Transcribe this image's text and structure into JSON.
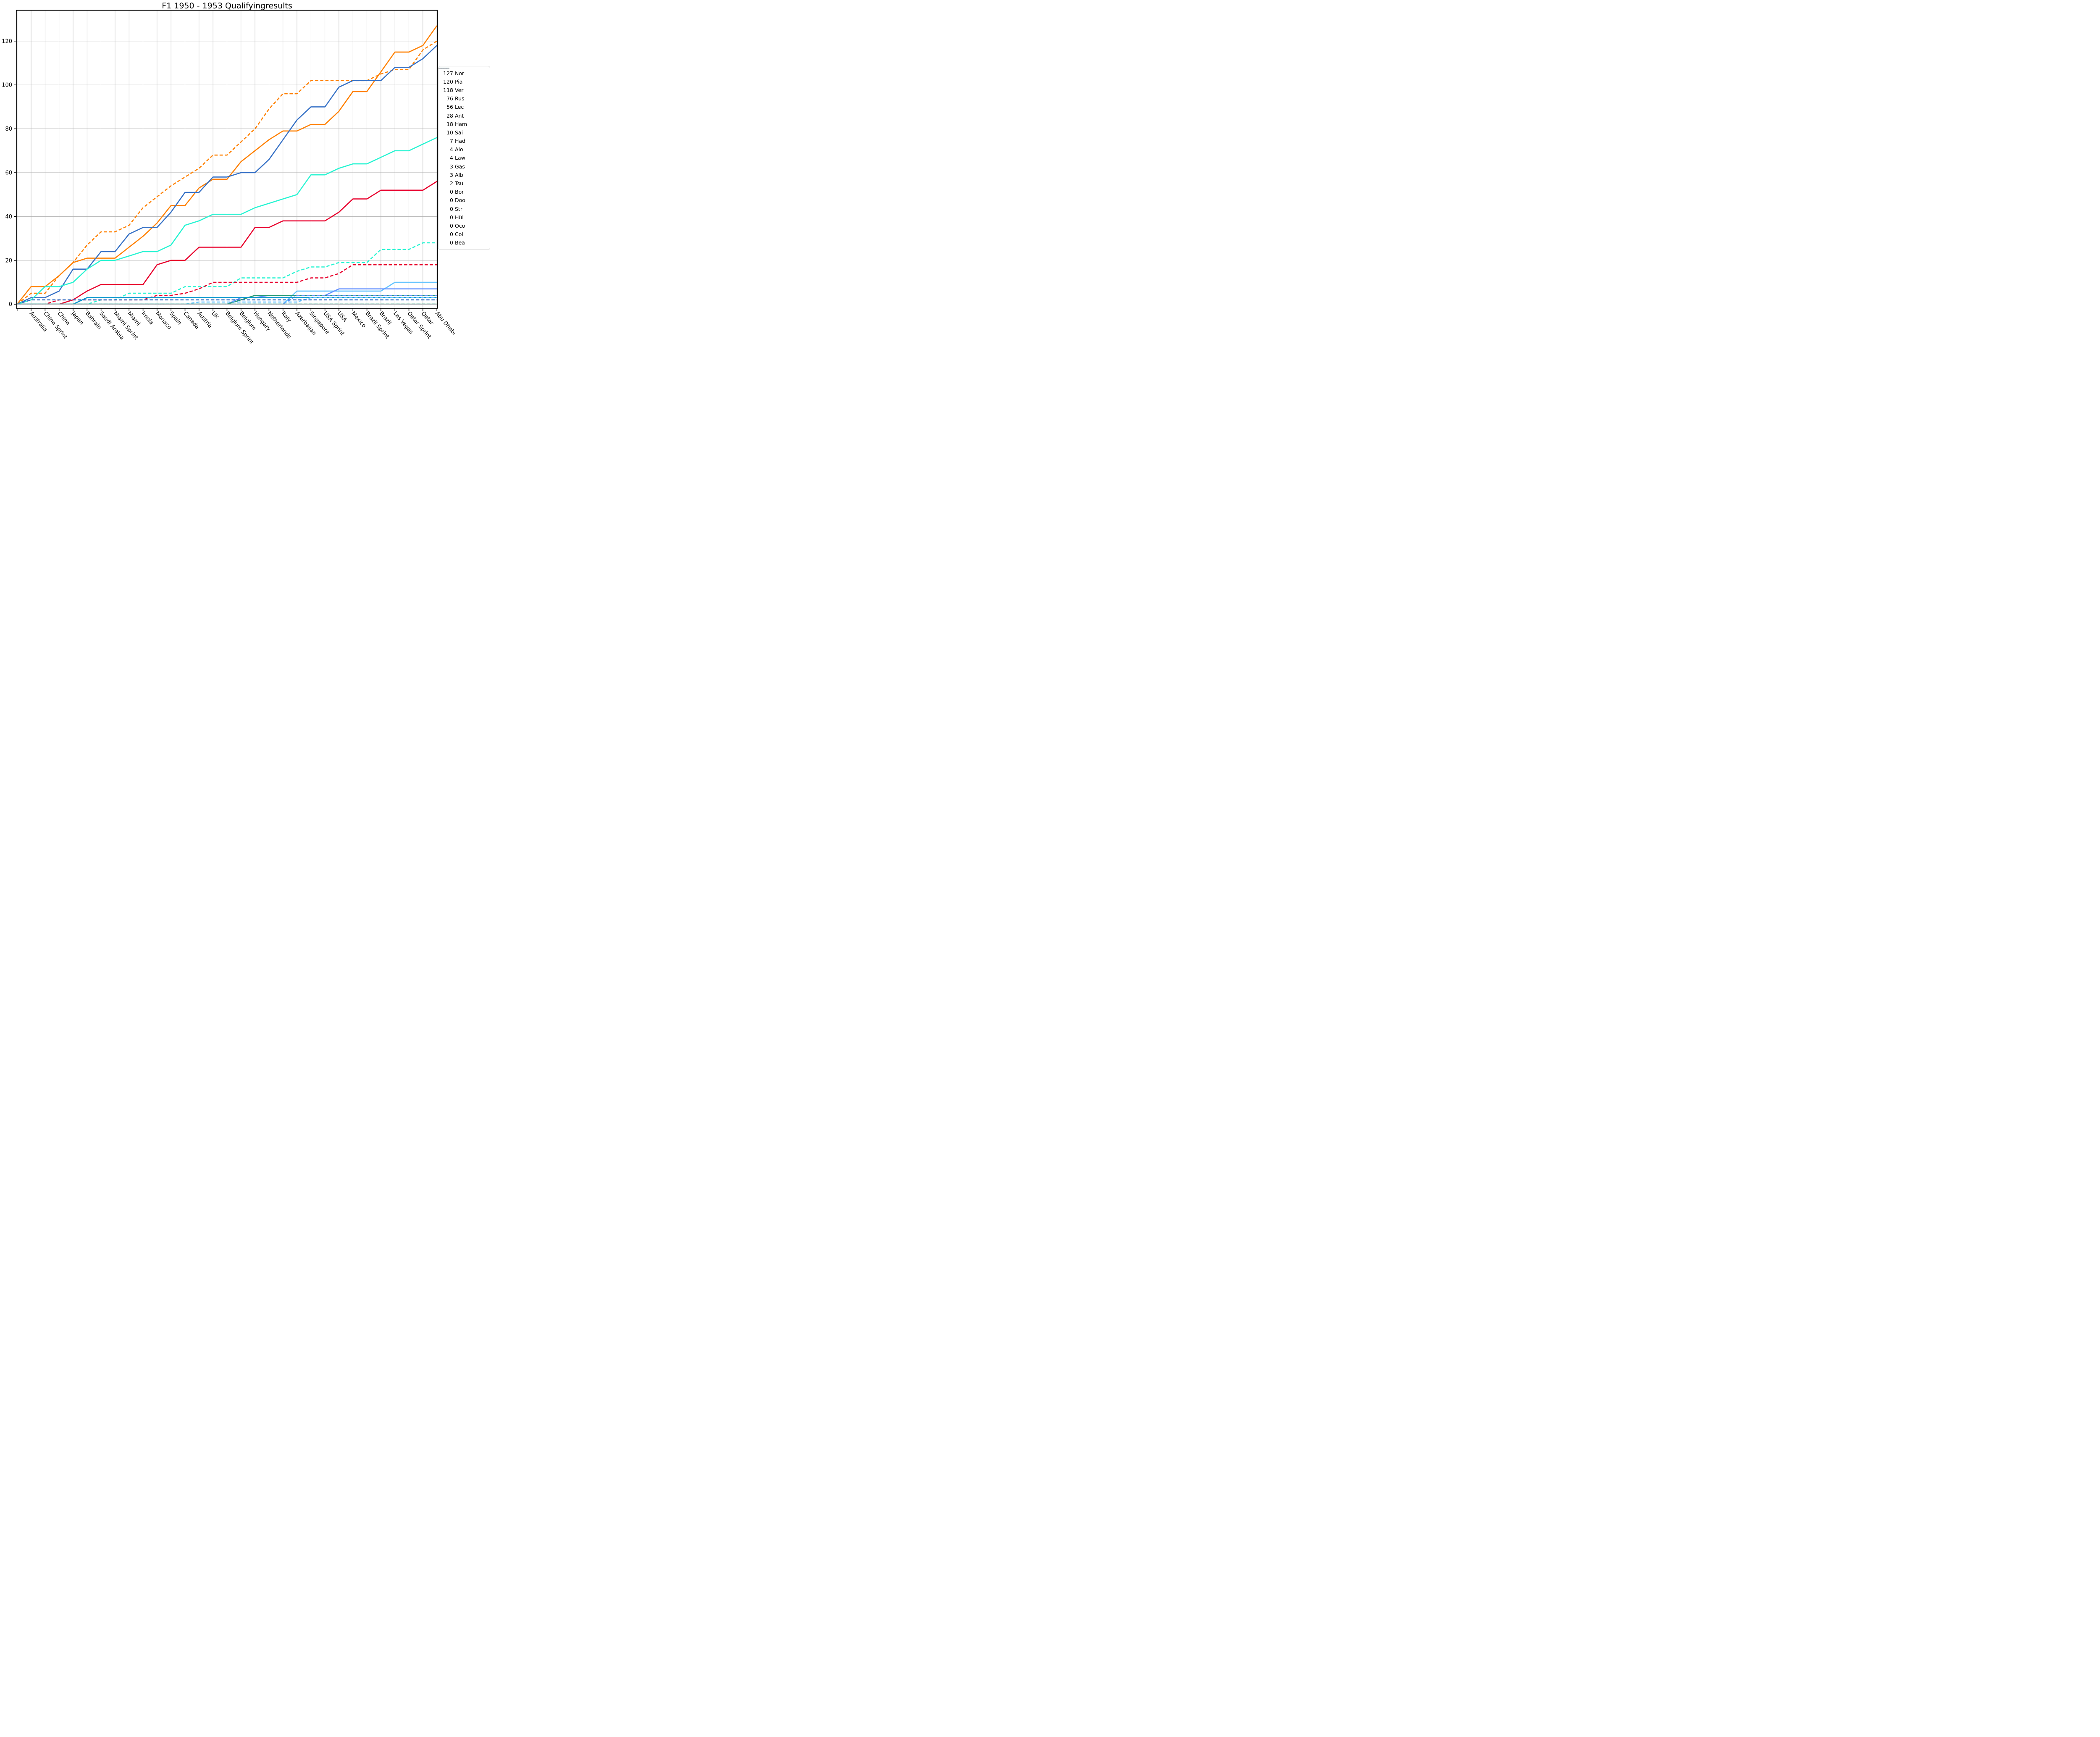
{
  "title": "F1 1950 - 1953 Qualifyingresults",
  "chart_data": {
    "type": "line",
    "title": "F1 1950 - 1953 Qualifyingresults",
    "xlabel": "",
    "ylabel": "",
    "ylim": [
      -2,
      134
    ],
    "yticks": [
      0,
      20,
      40,
      60,
      80,
      100,
      120
    ],
    "grid": true,
    "legend_position": "right-outside",
    "categories": [
      "Australia",
      "China Sprint",
      "China",
      "Japan",
      "Bahrain",
      "Saudi Arabia",
      "Miami Sprint",
      "Miami",
      "Imola",
      "Monaco",
      "Spain",
      "Canada",
      "Austria",
      "UK",
      "Belgium Sprint",
      "Belgium",
      "Hungary",
      "Netherlands",
      "Italy",
      "Azerbaijan",
      "Singapore",
      "USA Sprint",
      "USA",
      "Mexico",
      "Brazil Sprint",
      "Brazil",
      "Las Vegas",
      "Qatar Sprint",
      "Qatar",
      "Abu Dhabi"
    ],
    "note_first_point": "all series start at 0 at an unlabeled tick before Australia",
    "series": [
      {
        "name": "Norris",
        "abbr": "Nor",
        "total": 127,
        "color": "#FF8000",
        "style": "solid",
        "values": [
          0,
          8,
          8,
          13,
          19,
          21,
          21,
          21,
          26,
          31,
          37,
          45,
          45,
          53,
          57,
          57,
          65,
          70,
          75,
          79,
          79,
          82,
          82,
          88,
          97,
          97,
          106,
          115,
          115,
          118,
          127
        ]
      },
      {
        "name": "Piastri",
        "abbr": "Pia",
        "total": 120,
        "color": "#FF8000",
        "style": "dashed",
        "values": [
          0,
          5,
          5,
          13,
          19,
          27,
          33,
          33,
          36,
          44,
          49,
          54,
          58,
          62,
          68,
          68,
          74,
          80,
          89,
          96,
          96,
          102,
          102,
          102,
          102,
          102,
          105,
          107,
          107,
          116,
          120
        ]
      },
      {
        "name": "Verstappen",
        "abbr": "Ver",
        "total": 118,
        "color": "#3671C6",
        "style": "solid",
        "values": [
          0,
          3,
          3,
          6,
          16,
          16,
          24,
          24,
          32,
          35,
          35,
          42,
          51,
          51,
          58,
          58,
          60,
          60,
          66,
          75,
          84,
          90,
          90,
          99,
          102,
          102,
          102,
          108,
          108,
          112,
          118
        ]
      },
      {
        "name": "Russell",
        "abbr": "Rus",
        "total": 76,
        "color": "#27F4D2",
        "style": "solid",
        "values": [
          0,
          2,
          8,
          8,
          10,
          16,
          20,
          20,
          22,
          24,
          24,
          27,
          36,
          38,
          41,
          41,
          41,
          44,
          46,
          48,
          50,
          59,
          59,
          62,
          64,
          64,
          67,
          70,
          70,
          73,
          76
        ]
      },
      {
        "name": "Leclerc",
        "abbr": "Lec",
        "total": 56,
        "color": "#E8002D",
        "style": "solid",
        "values": [
          0,
          0,
          0,
          0,
          2,
          6,
          9,
          9,
          9,
          9,
          18,
          20,
          20,
          26,
          26,
          26,
          26,
          35,
          35,
          38,
          38,
          38,
          38,
          42,
          48,
          48,
          52,
          52,
          52,
          52,
          56
        ]
      },
      {
        "name": "Antonelli",
        "abbr": "Ant",
        "total": 28,
        "color": "#27F4D2",
        "style": "dashed",
        "values": [
          0,
          0,
          0,
          0,
          0,
          0,
          2,
          2,
          5,
          5,
          5,
          5,
          8,
          8,
          8,
          8,
          12,
          12,
          12,
          12,
          15,
          17,
          17,
          19,
          19,
          19,
          25,
          25,
          25,
          28,
          28
        ]
      },
      {
        "name": "Hamilton",
        "abbr": "Ham",
        "total": 18,
        "color": "#E8002D",
        "style": "dashed",
        "values": [
          0,
          0,
          0,
          2,
          2,
          2,
          2,
          2,
          2,
          2,
          4,
          4,
          5,
          7,
          10,
          10,
          10,
          10,
          10,
          10,
          10,
          12,
          12,
          14,
          18,
          18,
          18,
          18,
          18,
          18,
          18
        ]
      },
      {
        "name": "Sainz",
        "abbr": "Sai",
        "total": 10,
        "color": "#64C4FF",
        "style": "solid",
        "values": [
          0,
          0,
          0,
          0,
          0,
          0,
          0,
          0,
          0,
          0,
          0,
          0,
          0,
          0,
          0,
          0,
          0,
          0,
          0,
          0,
          6,
          6,
          6,
          6,
          6,
          6,
          6,
          10,
          10,
          10,
          10
        ]
      },
      {
        "name": "Hadjar",
        "abbr": "Had",
        "total": 7,
        "color": "#6692FF",
        "style": "solid",
        "values": [
          0,
          0,
          0,
          0,
          0,
          0,
          0,
          0,
          0,
          0,
          0,
          0,
          0,
          0,
          0,
          0,
          3,
          3,
          4,
          4,
          4,
          4,
          4,
          7,
          7,
          7,
          7,
          7,
          7,
          7,
          7
        ]
      },
      {
        "name": "Alonso",
        "abbr": "Alo",
        "total": 4,
        "color": "#229971",
        "style": "solid",
        "values": [
          0,
          0,
          0,
          0,
          0,
          0,
          0,
          0,
          0,
          0,
          0,
          0,
          0,
          0,
          0,
          0,
          2,
          4,
          4,
          4,
          4,
          4,
          4,
          4,
          4,
          4,
          4,
          4,
          4,
          4,
          4
        ]
      },
      {
        "name": "Lawson",
        "abbr": "Law",
        "total": 4,
        "color": "#6692FF",
        "style": "dashed",
        "values": [
          0,
          0,
          0,
          0,
          0,
          0,
          0,
          0,
          0,
          0,
          0,
          0,
          0,
          0,
          0,
          0,
          0,
          0,
          0,
          0,
          4,
          4,
          4,
          4,
          4,
          4,
          4,
          4,
          4,
          4,
          4
        ]
      },
      {
        "name": "Gasly",
        "abbr": "Gas",
        "total": 3,
        "color": "#0093CC",
        "style": "solid",
        "values": [
          0,
          0,
          0,
          0,
          0,
          3,
          3,
          3,
          3,
          3,
          3,
          3,
          3,
          3,
          3,
          3,
          3,
          3,
          3,
          3,
          3,
          3,
          3,
          3,
          3,
          3,
          3,
          3,
          3,
          3,
          3
        ]
      },
      {
        "name": "Albon",
        "abbr": "Alb",
        "total": 3,
        "color": "#64C4FF",
        "style": "dashed",
        "values": [
          0,
          0,
          0,
          0,
          0,
          0,
          0,
          0,
          0,
          0,
          0,
          0,
          0,
          1,
          1,
          1,
          1,
          1,
          1,
          1,
          1,
          3,
          3,
          3,
          3,
          3,
          3,
          3,
          3,
          3,
          3
        ]
      },
      {
        "name": "Tsunoda",
        "abbr": "Tsu",
        "total": 2,
        "color": "#3671C6",
        "style": "dashed",
        "values": [
          0,
          2,
          2,
          2,
          2,
          2,
          2,
          2,
          2,
          2,
          2,
          2,
          2,
          2,
          2,
          2,
          2,
          2,
          2,
          2,
          2,
          2,
          2,
          2,
          2,
          2,
          2,
          2,
          2,
          2,
          2
        ]
      },
      {
        "name": "Bortoleto",
        "abbr": "Bor",
        "total": 0,
        "color": "#52E252",
        "style": "dashed",
        "values": [
          0,
          0,
          0,
          0,
          0,
          0,
          0,
          0,
          0,
          0,
          0,
          0,
          0,
          0,
          0,
          0,
          0,
          0,
          0,
          0,
          0,
          0,
          0,
          0,
          0,
          0,
          0,
          0,
          0,
          0,
          0
        ]
      },
      {
        "name": "Doohan",
        "abbr": "Doo",
        "total": 0,
        "color": "#0093CC",
        "style": "dotted",
        "values": [
          0,
          0,
          0,
          0,
          0,
          0,
          0,
          0,
          0,
          0,
          0,
          0,
          0,
          0,
          0,
          0,
          0,
          0,
          0,
          0,
          0,
          0,
          0,
          0,
          0,
          0,
          0,
          0,
          0,
          0,
          0
        ]
      },
      {
        "name": "Stroll",
        "abbr": "Str",
        "total": 0,
        "color": "#229971",
        "style": "dashed",
        "values": [
          0,
          0,
          0,
          0,
          0,
          0,
          0,
          0,
          0,
          0,
          0,
          0,
          0,
          0,
          0,
          0,
          0,
          0,
          0,
          0,
          0,
          0,
          0,
          0,
          0,
          0,
          0,
          0,
          0,
          0,
          0
        ]
      },
      {
        "name": "Hülkenberg",
        "abbr": "Hül",
        "total": 0,
        "color": "#52E252",
        "style": "solid",
        "values": [
          0,
          0,
          0,
          0,
          0,
          0,
          0,
          0,
          0,
          0,
          0,
          0,
          0,
          0,
          0,
          0,
          0,
          0,
          0,
          0,
          0,
          0,
          0,
          0,
          0,
          0,
          0,
          0,
          0,
          0,
          0
        ]
      },
      {
        "name": "Ocon",
        "abbr": "Oco",
        "total": 0,
        "color": "#B6BABD",
        "style": "solid",
        "values": [
          0,
          0,
          0,
          0,
          0,
          0,
          0,
          0,
          0,
          0,
          0,
          0,
          0,
          0,
          0,
          0,
          0,
          0,
          0,
          0,
          0,
          0,
          0,
          0,
          0,
          0,
          0,
          0,
          0,
          0,
          0
        ]
      },
      {
        "name": "Colapinto",
        "abbr": "Col",
        "total": 0,
        "color": "#0093CC",
        "style": "dashed",
        "values": [
          0,
          0,
          0,
          0,
          0,
          0,
          0,
          0,
          0,
          0,
          0,
          0,
          0,
          0,
          0,
          0,
          0,
          0,
          0,
          0,
          0,
          0,
          0,
          0,
          0,
          0,
          0,
          0,
          0,
          0,
          0
        ]
      },
      {
        "name": "Bearman",
        "abbr": "Bea",
        "total": 0,
        "color": "#B6BABD",
        "style": "dashed",
        "values": [
          0,
          0,
          0,
          0,
          0,
          0,
          0,
          0,
          0,
          0,
          0,
          0,
          0,
          0,
          0,
          0,
          0,
          0,
          0,
          0,
          0,
          0,
          0,
          0,
          0,
          0,
          0,
          0,
          0,
          0,
          0
        ]
      }
    ]
  },
  "legend": {
    "entries": [
      {
        "label": "127 Nor"
      },
      {
        "label": "120 Pia"
      },
      {
        "label": "118 Ver"
      },
      {
        "label": "76 Rus"
      },
      {
        "label": "56 Lec"
      },
      {
        "label": "28 Ant"
      },
      {
        "label": "18 Ham"
      },
      {
        "label": "10 Sai"
      },
      {
        "label": "7 Had"
      },
      {
        "label": "4 Alo"
      },
      {
        "label": "4 Law"
      },
      {
        "label": "3 Gas"
      },
      {
        "label": "3 Alb"
      },
      {
        "label": "2 Tsu"
      },
      {
        "label": "0 Bor"
      },
      {
        "label": "0 Doo"
      },
      {
        "label": "0 Str"
      },
      {
        "label": "0 Hül"
      },
      {
        "label": "0 Oco"
      },
      {
        "label": "0 Col"
      },
      {
        "label": "0 Bea"
      }
    ]
  },
  "axes": {
    "y_tick_labels": [
      "0",
      "20",
      "40",
      "60",
      "80",
      "100",
      "120"
    ],
    "x_tick_labels": [
      "Australia",
      "China Sprint",
      "China",
      "Japan",
      "Bahrain",
      "Saudi Arabia",
      "Miami Sprint",
      "Miami",
      "Imola",
      "Monaco",
      "Spain",
      "Canada",
      "Austria",
      "UK",
      "Belgium Sprint",
      "Belgium",
      "Hungary",
      "Netherlands",
      "Italy",
      "Azerbaijan",
      "Singapore",
      "USA Sprint",
      "USA",
      "Mexico",
      "Brazil Sprint",
      "Brazil",
      "Las Vegas",
      "Qatar Sprint",
      "Qatar",
      "Abu Dhabi"
    ]
  },
  "style": {
    "grid_color": "#b0b0b0",
    "spine_color": "#000000",
    "background": "#ffffff",
    "legend_border": "#d0d0d0"
  }
}
